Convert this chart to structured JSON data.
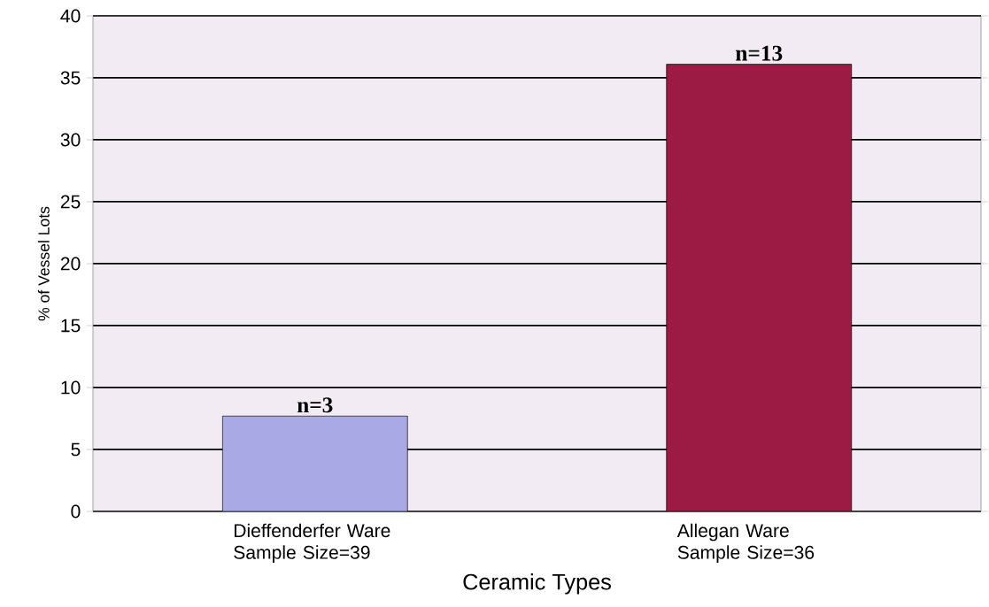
{
  "chart_data": {
    "type": "bar",
    "xlabel": "Ceramic Types",
    "ylabel": "% of Vessel Lots",
    "categories": [
      "Dieffenderfer Ware Sample Size=39",
      "Allegan Ware Sample Size=36"
    ],
    "values": [
      7.7,
      36.1
    ],
    "colors": [
      "#a9a9e6",
      "#9b1b45"
    ],
    "annotations": [
      {
        "text": "n=3",
        "x": "Dieffenderfer Ware Sample Size=39",
        "y": 7.7
      },
      {
        "text": "n=13",
        "x": "Allegan Ware Sample Size=36",
        "y": 36.1
      }
    ],
    "ylim": [
      0,
      40
    ],
    "yticks": [
      0,
      5,
      10,
      15,
      20,
      25,
      30,
      35,
      40
    ],
    "grid": "y"
  }
}
